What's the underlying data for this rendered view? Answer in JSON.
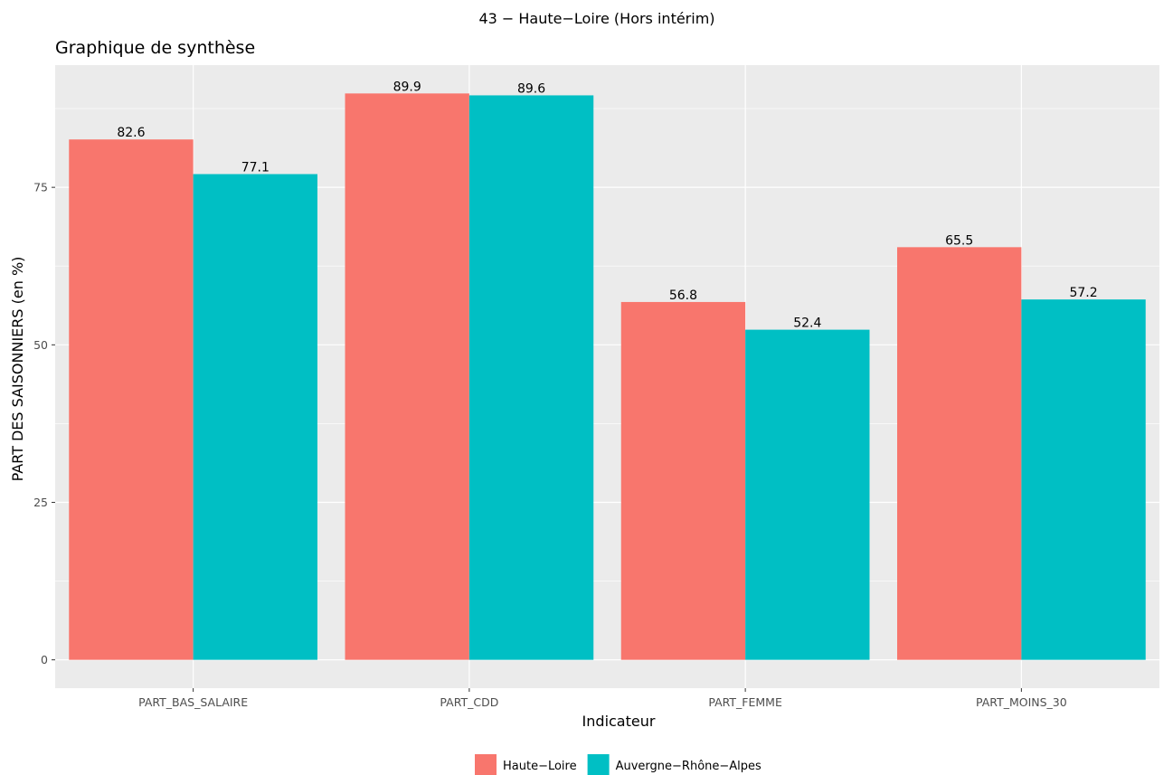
{
  "chart_data": {
    "type": "bar",
    "title": "43 − Haute−Loire (Hors intérim)",
    "subtitle": "Graphique de synthèse",
    "xlabel": "Indicateur",
    "ylabel": "PART DES SAISONNIERS (en %)",
    "categories": [
      "PART_BAS_SALAIRE",
      "PART_CDD",
      "PART_FEMME",
      "PART_MOINS_30"
    ],
    "series": [
      {
        "name": "Haute−Loire",
        "color": "#F8766D",
        "values": [
          82.6,
          89.9,
          56.8,
          65.5
        ]
      },
      {
        "name": "Auvergne−Rhône−Alpes",
        "color": "#00BFC4",
        "values": [
          77.1,
          89.6,
          52.4,
          57.2
        ]
      }
    ],
    "ylim": [
      -4.5,
      94.4
    ],
    "yticks": [
      0,
      25,
      50,
      75
    ],
    "ytick_labels": [
      "0",
      "25",
      "50",
      "75"
    ],
    "data_labels": true,
    "grid": true,
    "legend_position": "bottom",
    "panel_background": "#EBEBEB",
    "grid_color": "#FFFFFF"
  }
}
